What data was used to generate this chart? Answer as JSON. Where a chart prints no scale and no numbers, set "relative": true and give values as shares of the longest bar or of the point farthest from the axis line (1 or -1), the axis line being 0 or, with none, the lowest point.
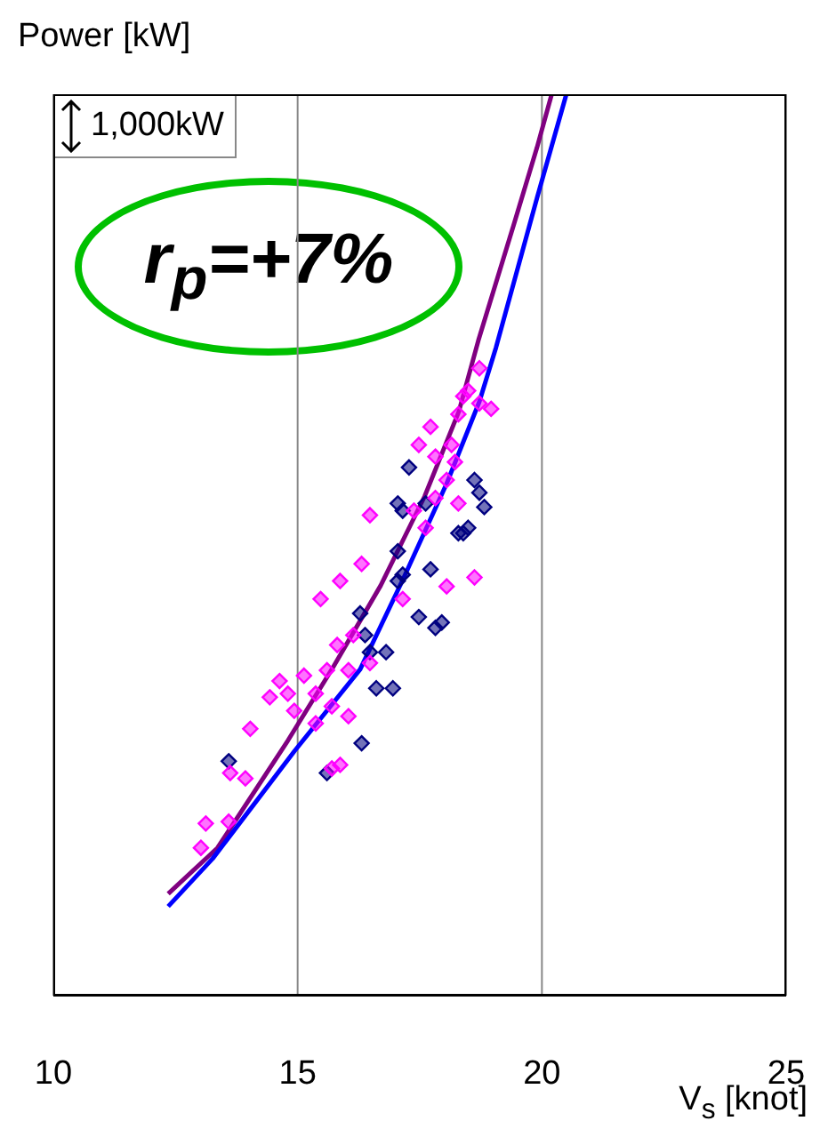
{
  "chart_data": {
    "type": "scatter",
    "ylabel": "Power [kW]",
    "xlabel": "V$_{s}$ [knot]",
    "relative": true,
    "xlim": [
      10,
      25
    ],
    "xticks": [
      10,
      15,
      20,
      25
    ],
    "grid": "x",
    "marker": "diamond",
    "annotations": [
      "1,000kW",
      "r$_{p}$=+7%"
    ],
    "series": [
      {
        "type": "line",
        "color": "#800080",
        "marker": "none",
        "x": [
          12.35,
          13.36,
          14.8,
          15.7,
          16.7,
          17.6,
          18.3,
          18.7,
          19.4,
          19.9,
          20.2
        ],
        "values": [
          0.113,
          0.164,
          0.283,
          0.362,
          0.455,
          0.554,
          0.648,
          0.727,
          0.851,
          0.941,
          1.0
        ]
      },
      {
        "type": "line",
        "color": "#0000ff",
        "marker": "none",
        "x": [
          12.35,
          13.26,
          14.93,
          16.28,
          17.15,
          18.05,
          18.72,
          19.06,
          19.9,
          20.5
        ],
        "values": [
          0.099,
          0.152,
          0.271,
          0.362,
          0.461,
          0.568,
          0.659,
          0.719,
          0.885,
          1.0
        ]
      },
      {
        "color": "#000080",
        "x": [
          13.59,
          15.6,
          16.31,
          16.28,
          16.38,
          16.48,
          16.81,
          16.95,
          16.61,
          17.05,
          17.15,
          17.72,
          17.48,
          17.82,
          17.95,
          17.28,
          17.05,
          17.15,
          17.62,
          18.29,
          18.49,
          18.62,
          18.72,
          18.82,
          18.39,
          17.05
        ],
        "values": [
          0.26,
          0.247,
          0.28,
          0.424,
          0.4,
          0.381,
          0.381,
          0.341,
          0.341,
          0.46,
          0.467,
          0.473,
          0.42,
          0.408,
          0.414,
          0.586,
          0.546,
          0.538,
          0.546,
          0.513,
          0.519,
          0.572,
          0.558,
          0.542,
          0.513,
          0.493
        ]
      },
      {
        "color": "#ff00ff",
        "x": [
          13.02,
          13.12,
          13.59,
          13.62,
          13.93,
          14.03,
          14.43,
          14.63,
          14.8,
          14.93,
          15.13,
          15.37,
          15.37,
          15.6,
          15.7,
          15.81,
          16.04,
          16.14,
          16.04,
          15.47,
          15.87,
          16.31,
          16.48,
          15.7,
          15.87,
          16.48,
          17.15,
          17.38,
          17.62,
          17.82,
          18.05,
          18.29,
          17.72,
          17.48,
          17.82,
          18.15,
          18.29,
          18.39,
          18.49,
          18.72,
          18.72,
          18.96,
          18.05,
          18.62,
          18.22
        ],
        "values": [
          0.164,
          0.191,
          0.193,
          0.247,
          0.241,
          0.296,
          0.331,
          0.349,
          0.335,
          0.316,
          0.355,
          0.335,
          0.302,
          0.361,
          0.321,
          0.389,
          0.31,
          0.4,
          0.361,
          0.44,
          0.46,
          0.479,
          0.533,
          0.252,
          0.256,
          0.369,
          0.44,
          0.538,
          0.519,
          0.552,
          0.572,
          0.546,
          0.631,
          0.611,
          0.598,
          0.611,
          0.645,
          0.665,
          0.671,
          0.657,
          0.696,
          0.651,
          0.454,
          0.464,
          0.592
        ]
      }
    ]
  }
}
